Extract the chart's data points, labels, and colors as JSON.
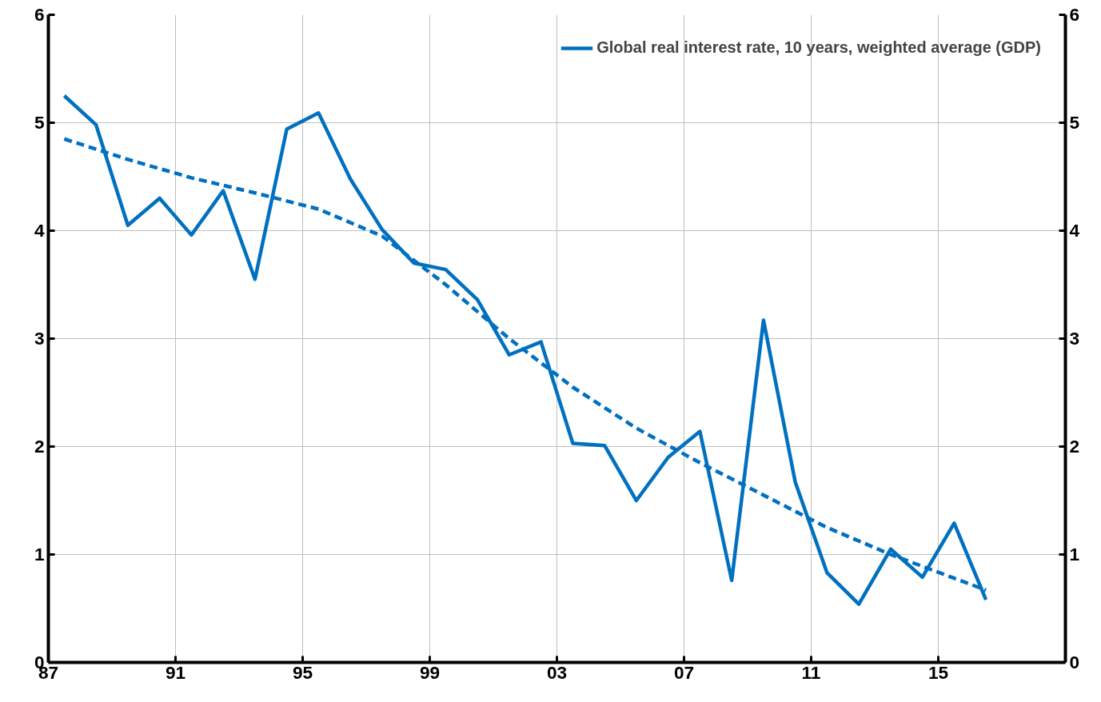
{
  "chart_data": {
    "type": "line",
    "xlim": [
      1987,
      2019
    ],
    "xticks": [
      {
        "value": 1987,
        "label": "87"
      },
      {
        "value": 1991,
        "label": "91"
      },
      {
        "value": 1995,
        "label": "95"
      },
      {
        "value": 1999,
        "label": "99"
      },
      {
        "value": 2003,
        "label": "03"
      },
      {
        "value": 2007,
        "label": "07"
      },
      {
        "value": 2011,
        "label": "11"
      },
      {
        "value": 2015,
        "label": "15"
      }
    ],
    "ylim": [
      0,
      6
    ],
    "yticks": [
      0,
      1,
      2,
      3,
      4,
      5,
      6
    ],
    "y2lim": [
      0,
      6
    ],
    "y2ticks": [
      0,
      1,
      2,
      3,
      4,
      5,
      6
    ],
    "grid": true,
    "legend": "top right",
    "marker": "none",
    "series": [
      {
        "name": "Global real interest rate, 10 years, weighted average (GDP)",
        "color": "#0070c0",
        "line_style": "solid",
        "x": [
          1987.5,
          1988.5,
          1989.5,
          1990.5,
          1991.5,
          1992.5,
          1993.5,
          1994.5,
          1995.5,
          1996.5,
          1997.5,
          1998.5,
          1999.5,
          2000.5,
          2001.5,
          2002.5,
          2003.5,
          2004.5,
          2005.5,
          2006.5,
          2007.5,
          2008.5,
          2009.5,
          2010.5,
          2011.5,
          2012.5,
          2013.5,
          2014.5,
          2015.5,
          2016.5
        ],
        "values": [
          5.25,
          4.98,
          4.05,
          4.3,
          3.96,
          4.37,
          3.55,
          4.94,
          5.09,
          4.48,
          4.01,
          3.7,
          3.64,
          3.36,
          2.85,
          2.97,
          2.03,
          2.01,
          1.5,
          1.9,
          2.14,
          0.76,
          3.17,
          1.67,
          0.83,
          0.54,
          1.05,
          0.79,
          1.29,
          0.58
        ]
      },
      {
        "type": "line",
        "color": "#0070c0",
        "line_style": "dashed",
        "x": [
          1987.5,
          1989.5,
          1991.5,
          1993.5,
          1995.5,
          1997.5,
          1999.5,
          2001.5,
          2003.5,
          2005.5,
          2007.5,
          2009.5,
          2011.5,
          2013.5,
          2015.5,
          2016.5
        ],
        "values": [
          4.85,
          4.66,
          4.49,
          4.35,
          4.2,
          3.95,
          3.5,
          3.0,
          2.55,
          2.17,
          1.85,
          1.55,
          1.25,
          1.0,
          0.78,
          0.67
        ]
      }
    ]
  }
}
